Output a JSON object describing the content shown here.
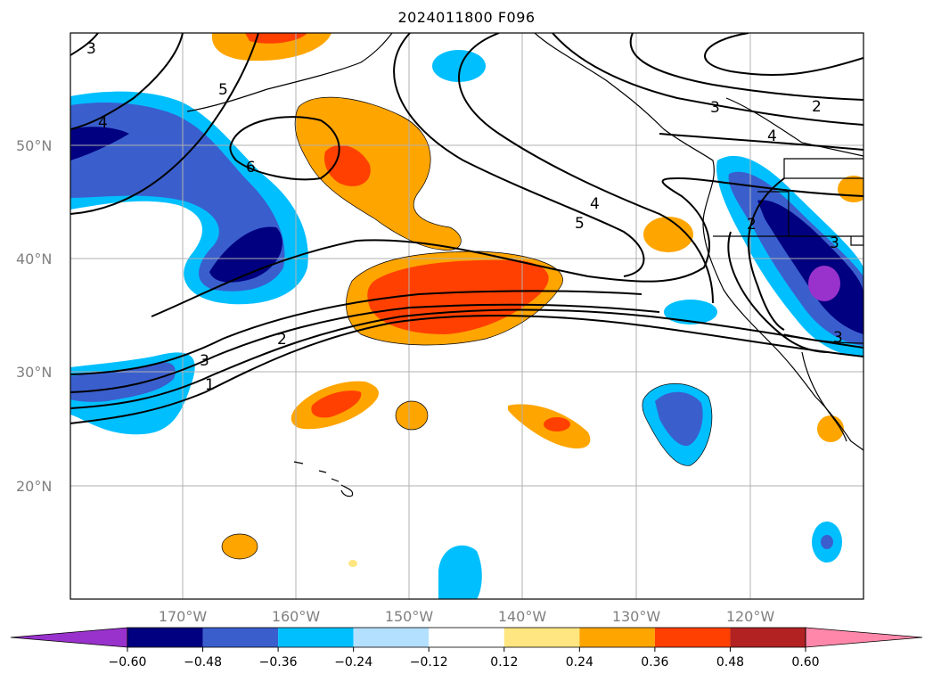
{
  "title": "2024011800 F096",
  "map": {
    "lat_labels": [
      "50°N",
      "40°N",
      "30°N",
      "20°N"
    ],
    "lon_labels": [
      "170°W",
      "160°W",
      "150°W",
      "140°W",
      "130°W",
      "120°W"
    ],
    "contour_labels": [
      "3",
      "5",
      "6",
      "4",
      "4",
      "5",
      "3",
      "2",
      "4",
      "2",
      "3",
      "2",
      "3",
      "1",
      "2",
      "3"
    ],
    "field_colors": {
      "strong_pos": "#ff4000",
      "pos": "#ffa500",
      "weak_pos": "#ffe680",
      "weak_neg": "#b3e0ff",
      "neg": "#00bfff",
      "strong_neg": "#3a5fcd",
      "very_strong_neg": "#000080",
      "extreme_neg": "#9932cc"
    }
  },
  "colorbar": {
    "ticks": [
      "−0.60",
      "−0.48",
      "−0.36",
      "−0.24",
      "−0.12",
      "0.12",
      "0.24",
      "0.36",
      "0.48",
      "0.60"
    ],
    "colors": [
      "#9932cc",
      "#000080",
      "#3a5fcd",
      "#00bfff",
      "#b3e0ff",
      "#ffffff",
      "#ffe680",
      "#ffa500",
      "#ff4000",
      "#b22222",
      "#ff88aa"
    ]
  }
}
